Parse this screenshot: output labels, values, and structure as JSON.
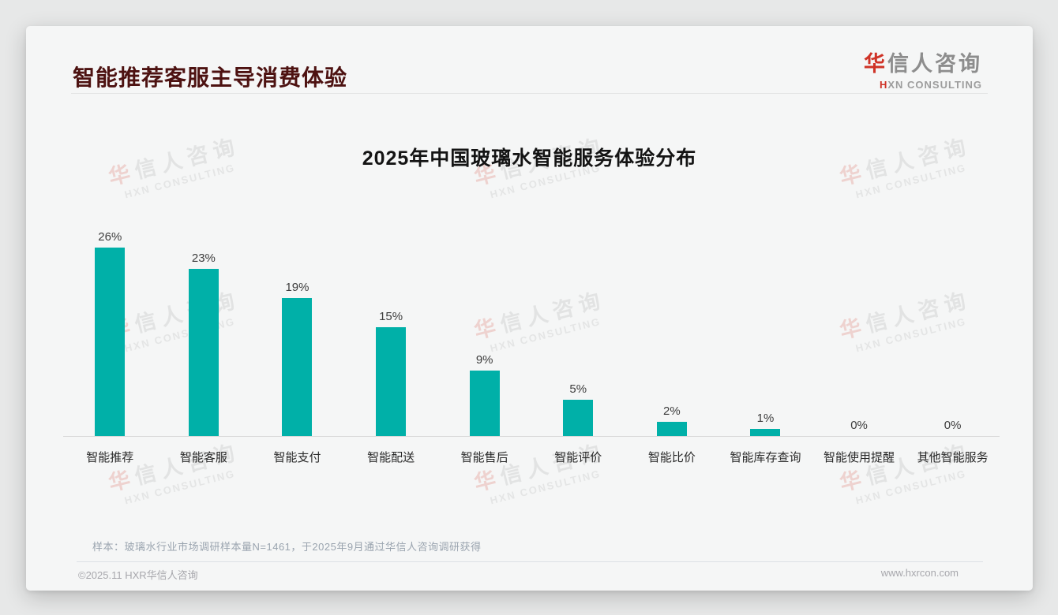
{
  "page": {
    "title": "智能推荐客服主导消费体验",
    "logo": {
      "zh_accent": "华",
      "zh_rest": "信人咨询",
      "en_accent": "H",
      "en_rest": "XN CONSULTING"
    },
    "watermark": {
      "zh_accent": "华",
      "zh_rest": "信人咨询",
      "en": "HXN CONSULTING"
    }
  },
  "chart_data": {
    "type": "bar",
    "title": "2025年中国玻璃水智能服务体验分布",
    "categories": [
      "智能推荐",
      "智能客服",
      "智能支付",
      "智能配送",
      "智能售后",
      "智能评价",
      "智能比价",
      "智能库存查询",
      "智能使用提醒",
      "其他智能服务"
    ],
    "values": [
      26,
      23,
      19,
      15,
      9,
      5,
      2,
      1,
      0,
      0
    ],
    "unit": "%",
    "value_labels": [
      "26%",
      "23%",
      "19%",
      "15%",
      "9%",
      "5%",
      "2%",
      "1%",
      "0%",
      "0%"
    ],
    "bar_color": "#00b0a8",
    "ylim": [
      0,
      28
    ],
    "grid": false,
    "legend": "none",
    "xlabel": "",
    "ylabel": ""
  },
  "footer": {
    "note": "样本：玻璃水行业市场调研样本量N=1461，于2025年9月通过华信人咨询调研获得",
    "copyright": "©2025.11 HXR华信人咨询",
    "website": "www.hxrcon.com"
  }
}
